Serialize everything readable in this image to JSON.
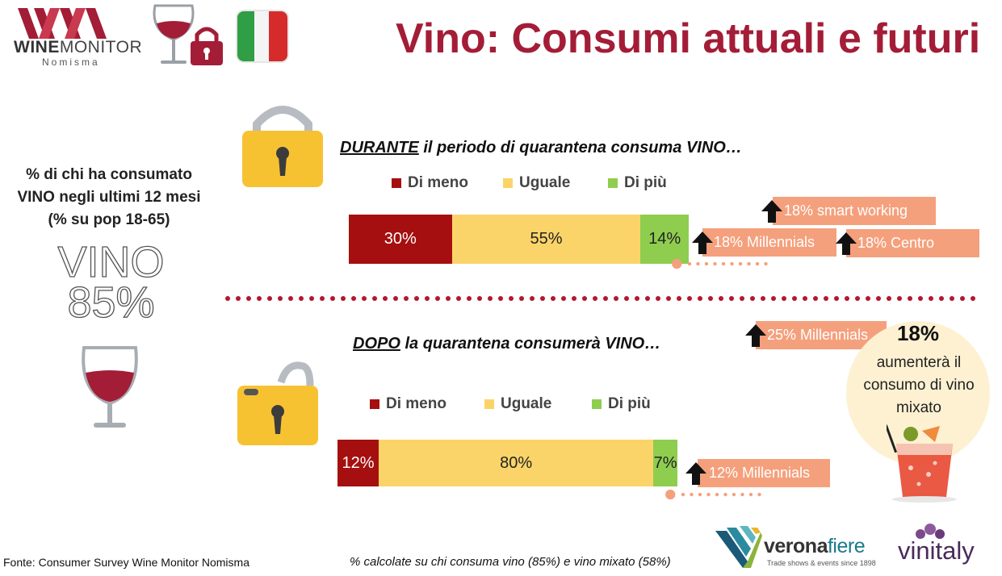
{
  "title": "Vino: Consumi attuali e futuri",
  "logo": {
    "word_bold": "WINE",
    "word_light": "MONITOR",
    "sub": "Nomisma"
  },
  "left_panel": {
    "label_lines": [
      "% di chi ha consumato",
      "VINO negli ultimi 12 mesi",
      "(% su pop 18-65)"
    ],
    "big_word": "VINO",
    "big_value": "85%"
  },
  "sections": [
    {
      "title_underlined": "DURANTE",
      "title_rest": " il periodo di quarantena consuma VINO…",
      "legend": [
        "Di meno",
        "Uguale",
        "Di più"
      ],
      "callouts": [
        "18% smart working",
        "18% Millennials",
        "18% Centro"
      ]
    },
    {
      "title_underlined": "DOPO",
      "title_rest": " la quarantena consumerà VINO…",
      "legend": [
        "Di meno",
        "Uguale",
        "Di più"
      ],
      "callouts": [
        "25% Millennials",
        "12% Millennials"
      ]
    }
  ],
  "circle": {
    "value": "18%",
    "text_lines": [
      "aumenterà il",
      "consumo di vino",
      "mixato"
    ]
  },
  "footer": {
    "source": "Fonte: Consumer Survey Wine Monitor Nomisma",
    "note": "% calcolate su chi consuma vino (85%) e vino mixato (58%)"
  },
  "brands": {
    "verona_a": "verona",
    "verona_b": "fiere",
    "verona_sub": "Trade shows & events since 1898",
    "vinitaly": "vinitaly"
  },
  "colors": {
    "title": "#a31d37",
    "less": "#a50f0f",
    "same": "#fbd469",
    "more": "#8fcd4f",
    "callout": "#f5a07c",
    "dots": "#f5a07c"
  },
  "icons": [
    "wine-glass-icon",
    "padlock-icon",
    "italy-flag-icon",
    "cocktail-icon"
  ],
  "chart_data": [
    {
      "type": "bar",
      "orientation": "horizontal-stacked",
      "categories": [
        "DURANTE"
      ],
      "series": [
        {
          "name": "Di meno",
          "values": [
            30
          ],
          "label": "30%"
        },
        {
          "name": "Uguale",
          "values": [
            55
          ],
          "label": "55%"
        },
        {
          "name": "Di più",
          "values": [
            14
          ],
          "label": "14%"
        }
      ]
    },
    {
      "type": "bar",
      "orientation": "horizontal-stacked",
      "categories": [
        "DOPO"
      ],
      "series": [
        {
          "name": "Di meno",
          "values": [
            12
          ],
          "label": "12%"
        },
        {
          "name": "Uguale",
          "values": [
            80
          ],
          "label": "80%"
        },
        {
          "name": "Di più",
          "values": [
            7
          ],
          "label": "7%"
        }
      ]
    }
  ]
}
